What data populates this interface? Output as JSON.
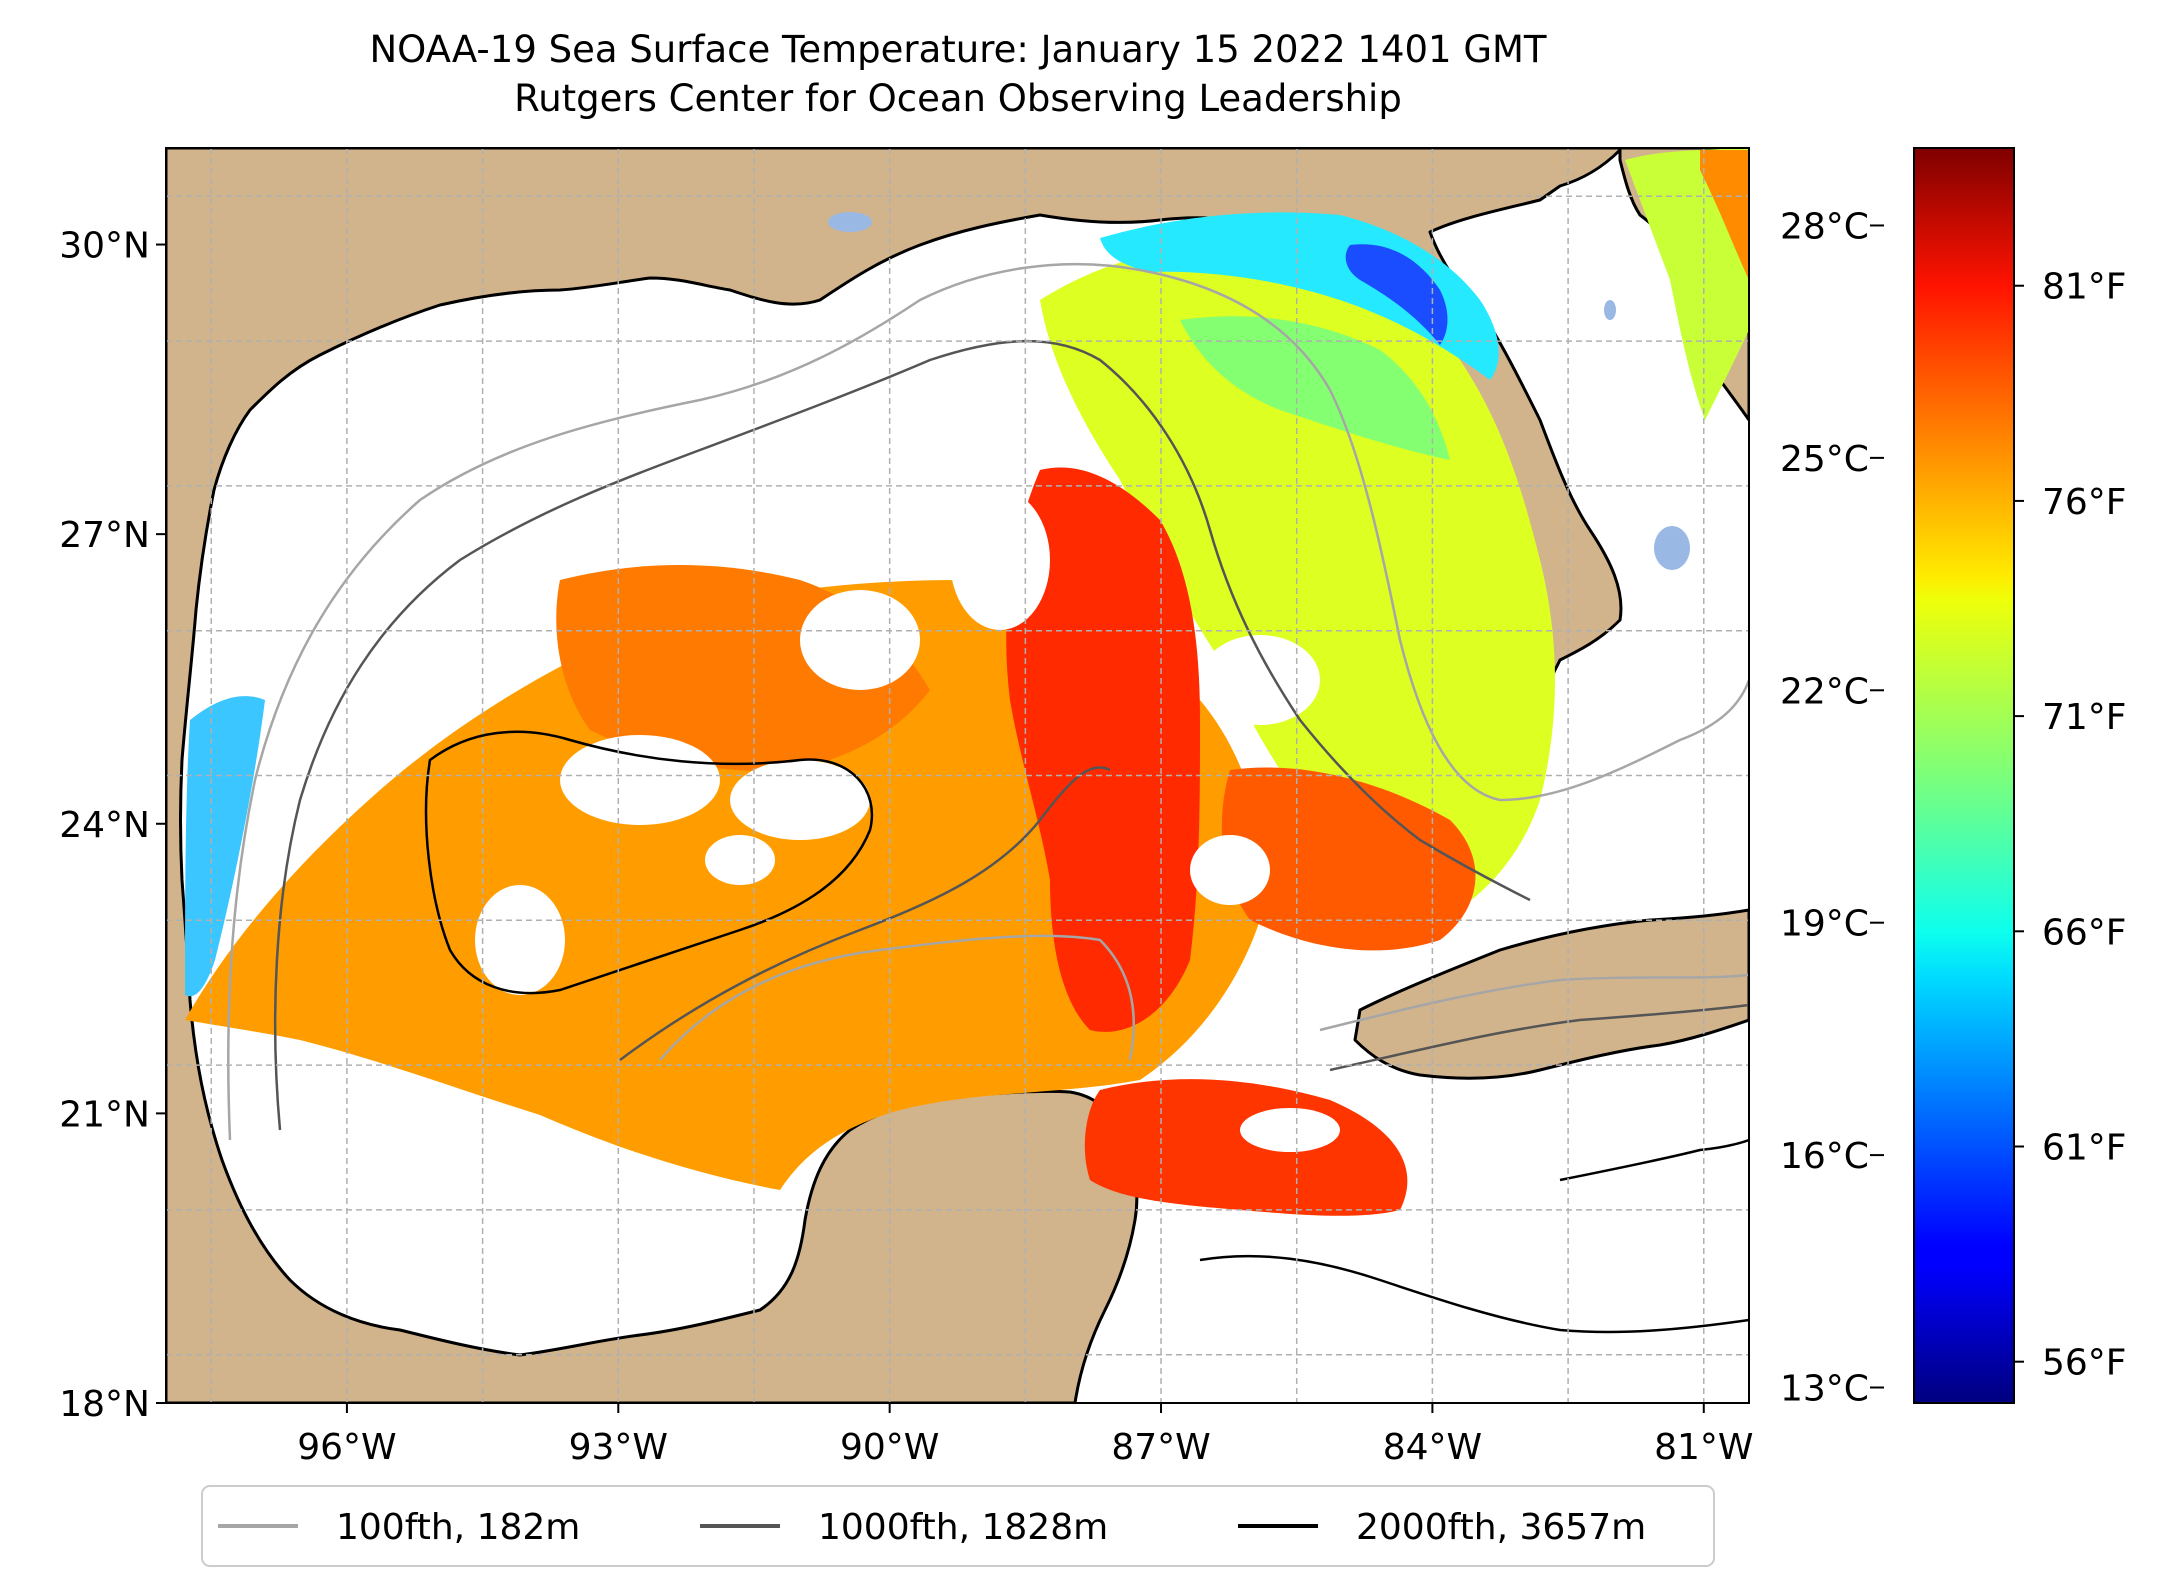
{
  "title": {
    "line1": "NOAA-19 Sea Surface Temperature: January 15 2022 1401 GMT",
    "line2": "Rutgers Center for Ocean Observing Leadership"
  },
  "map": {
    "lon_range": [
      -98.0,
      -80.5
    ],
    "lat_range": [
      18.0,
      31.0
    ],
    "lat_ticks": [
      {
        "value": 18,
        "label": "18°N"
      },
      {
        "value": 21,
        "label": "21°N"
      },
      {
        "value": 24,
        "label": "24°N"
      },
      {
        "value": 27,
        "label": "27°N"
      },
      {
        "value": 30,
        "label": "30°N"
      }
    ],
    "lon_ticks": [
      {
        "value": -96,
        "label": "96°W"
      },
      {
        "value": -93,
        "label": "93°W"
      },
      {
        "value": -90,
        "label": "90°W"
      },
      {
        "value": -87,
        "label": "87°W"
      },
      {
        "value": -84,
        "label": "84°W"
      },
      {
        "value": -81,
        "label": "81°W"
      }
    ],
    "gridlines": "dashed",
    "colors": {
      "land": "#d2b48c",
      "lakes": "#9ab8e4",
      "grid": "#b0b0b0"
    }
  },
  "colorbar": {
    "colormap": "jet",
    "range_c": [
      12.8,
      29.0
    ],
    "celsius_ticks": [
      {
        "value": 13,
        "label": "13°C"
      },
      {
        "value": 16,
        "label": "16°C"
      },
      {
        "value": 19,
        "label": "19°C"
      },
      {
        "value": 22,
        "label": "22°C"
      },
      {
        "value": 25,
        "label": "25°C"
      },
      {
        "value": 28,
        "label": "28°C"
      }
    ],
    "fahrenheit_ticks": [
      {
        "value": 56,
        "label": "56°F"
      },
      {
        "value": 61,
        "label": "61°F"
      },
      {
        "value": 66,
        "label": "66°F"
      },
      {
        "value": 71,
        "label": "71°F"
      },
      {
        "value": 76,
        "label": "76°F"
      },
      {
        "value": 81,
        "label": "81°F"
      }
    ]
  },
  "legend": {
    "location": "bottom-center",
    "entries": [
      {
        "label": "100fth, 182m",
        "color": "#a6a6a6"
      },
      {
        "label": "1000fth, 1828m",
        "color": "#555555"
      },
      {
        "label": "2000fth, 3657m",
        "color": "#000000"
      }
    ]
  }
}
